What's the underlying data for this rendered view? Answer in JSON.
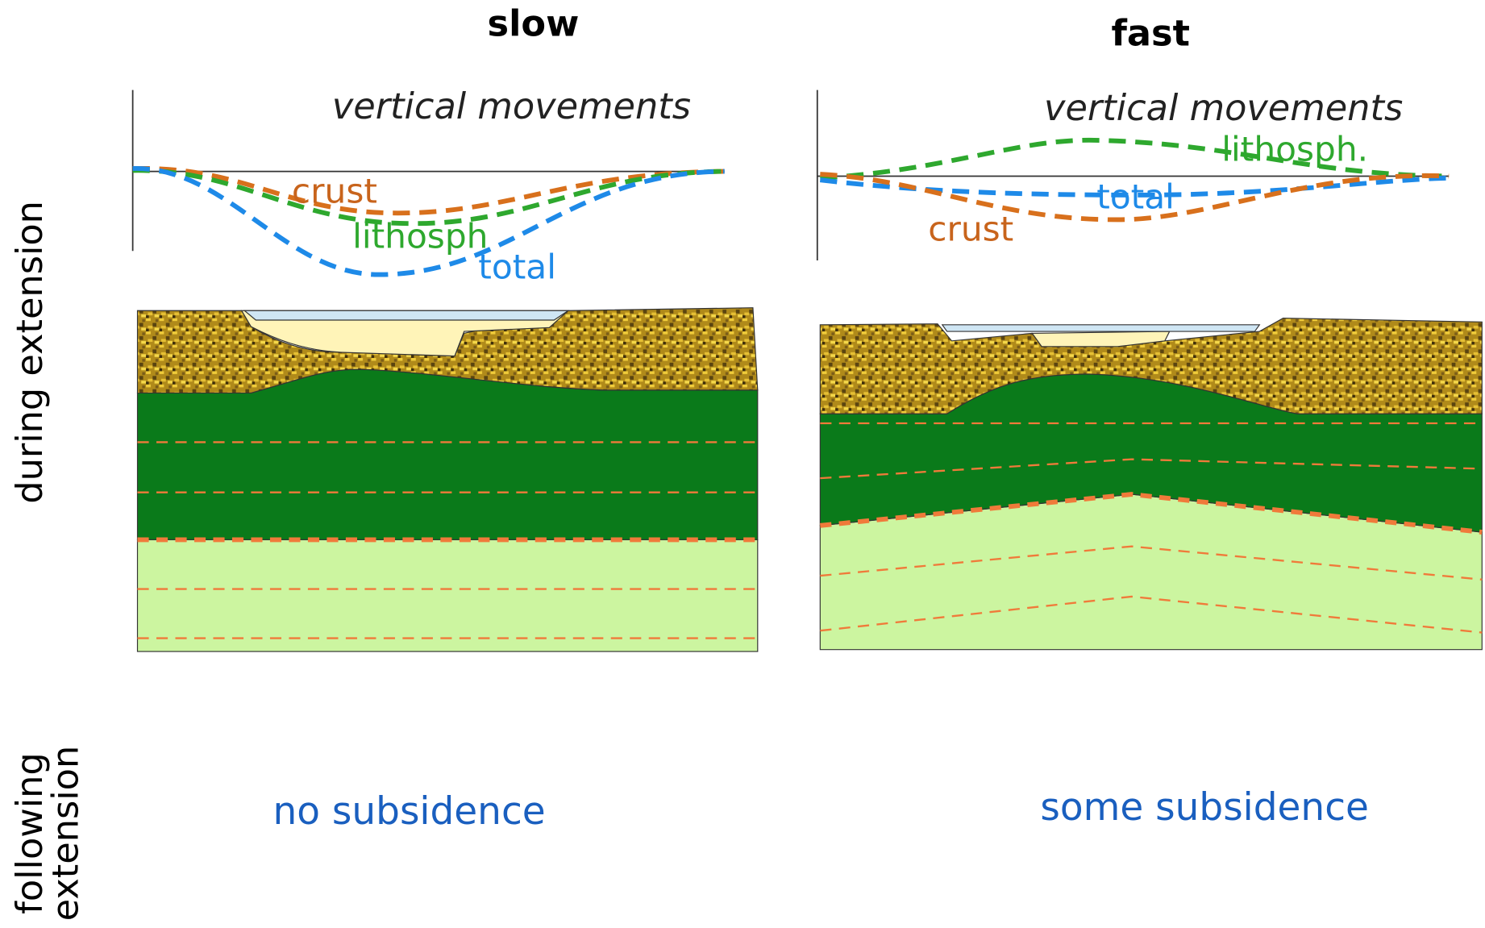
{
  "columns": [
    {
      "title": "slow",
      "graph_title": "vertical movements",
      "curve_labels": {
        "crust": "crust",
        "lithosphere": "lithosph",
        "total": "total"
      },
      "result": "no subsidence"
    },
    {
      "title": "fast",
      "graph_title": "vertical movements",
      "curve_labels": {
        "crust": "crust",
        "lithosphere": "lithosph.",
        "total": "total"
      },
      "result": "some subsidence"
    }
  ],
  "rows": [
    {
      "label_lines": [
        "during extension"
      ]
    },
    {
      "label_lines": [
        "following",
        "extension"
      ]
    }
  ]
}
